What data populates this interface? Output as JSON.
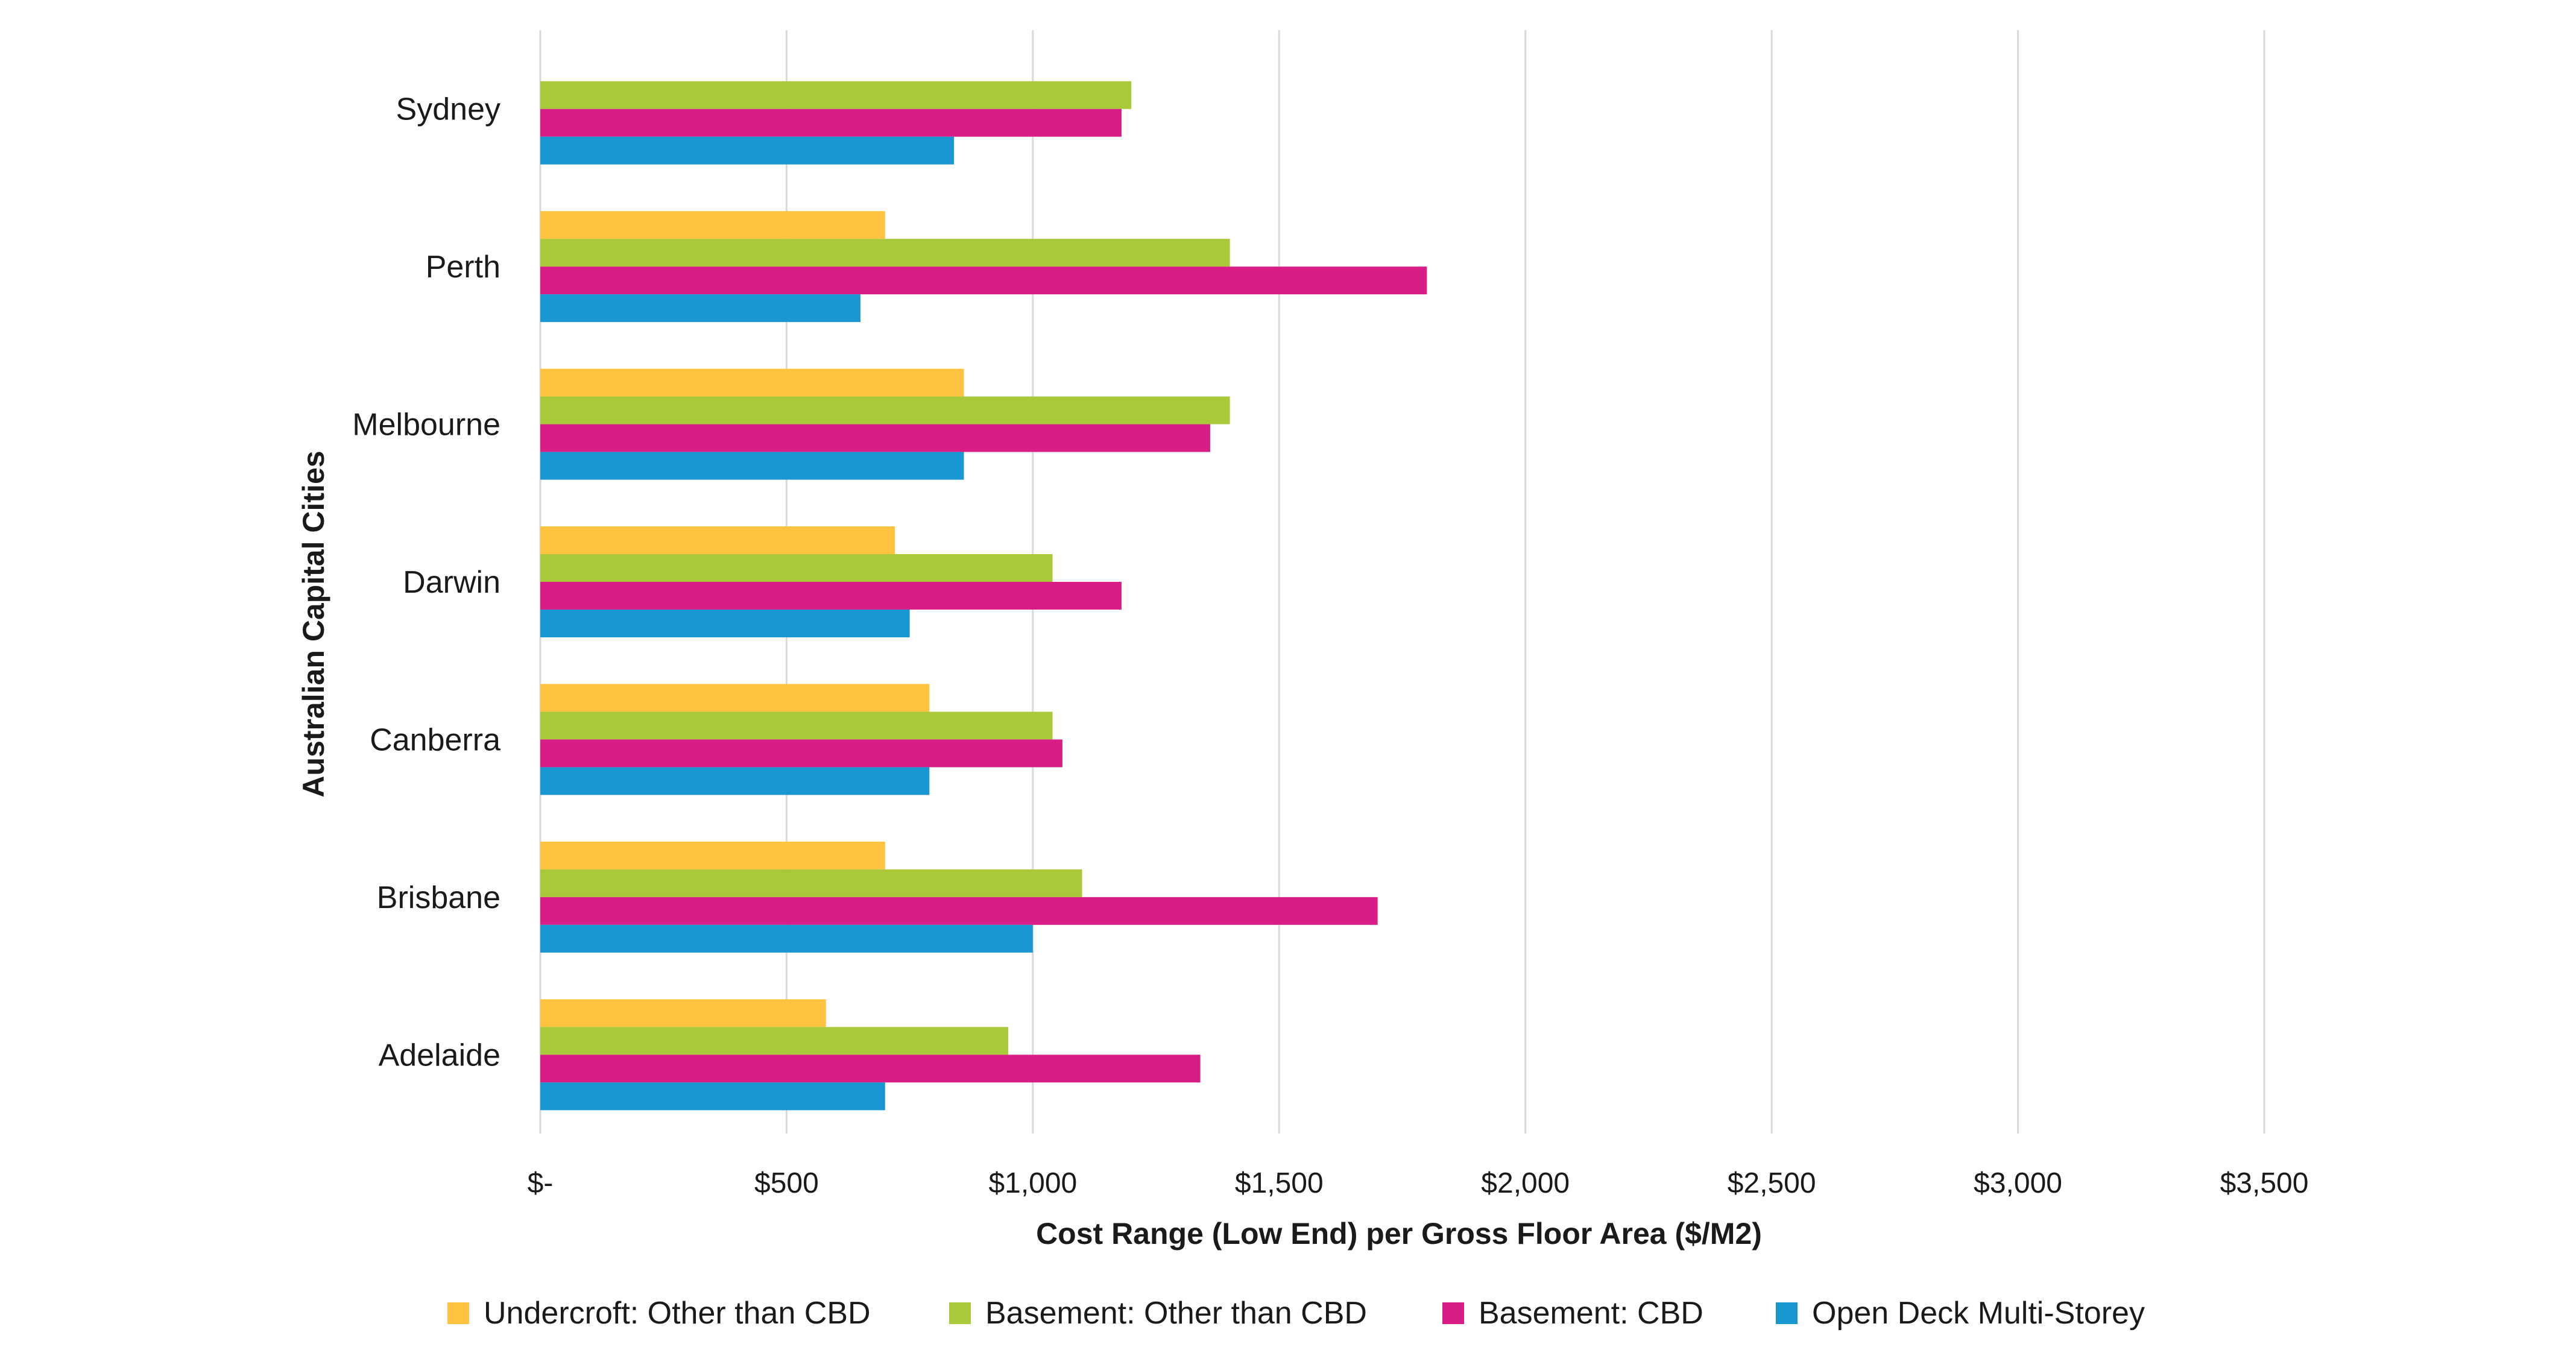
{
  "chart_data": {
    "type": "bar",
    "orientation": "horizontal",
    "categories": [
      "Sydney",
      "Perth",
      "Melbourne",
      "Darwin",
      "Canberra",
      "Brisbane",
      "Adelaide"
    ],
    "series": [
      {
        "name": "Undercroft: Other than CBD",
        "color": "#FFC33F",
        "values": [
          null,
          700,
          860,
          720,
          790,
          700,
          580
        ]
      },
      {
        "name": "Basement: Other than CBD",
        "color": "#A9C93A",
        "values": [
          1200,
          1400,
          1400,
          1040,
          1040,
          1100,
          950
        ]
      },
      {
        "name": "Basement: CBD",
        "color": "#D91D86",
        "values": [
          1180,
          1800,
          1360,
          1180,
          1060,
          1700,
          1340
        ]
      },
      {
        "name": "Open Deck Multi-Storey",
        "color": "#1A97D3",
        "values": [
          840,
          650,
          860,
          750,
          790,
          1000,
          700
        ]
      }
    ],
    "xlabel": "Cost Range (Low End) per Gross Floor Area ($/M2)",
    "ylabel": "Australian Capital Cities",
    "xlim": [
      0,
      3500
    ],
    "xticks": [
      0,
      500,
      1000,
      1500,
      2000,
      2500,
      3000,
      3500
    ],
    "xtick_labels": [
      "$-",
      "$500",
      "$1,000",
      "$1,500",
      "$2,000",
      "$2,500",
      "$3,000",
      "$3,500"
    ],
    "grid": "vertical",
    "grid_color": "#D9D9D9",
    "legend_position": "bottom"
  }
}
